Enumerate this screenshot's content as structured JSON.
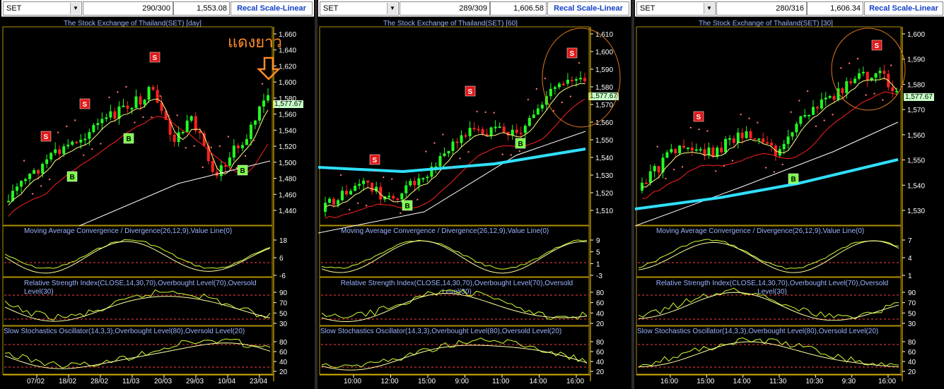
{
  "panels": [
    {
      "symbol": "SET",
      "bars": "290/300",
      "price": "1,553.08",
      "recal": "Recal Scale-Linear",
      "title": "The Stock Exchange of Thailand(SET) [day]",
      "last_price": "1,577.67",
      "annotation": "แดงยาว",
      "price_axis": [
        "1,660",
        "1,640",
        "1,620",
        "1,600",
        "1,580",
        "1,560",
        "1,540",
        "1,520",
        "1,500",
        "1,480",
        "1,460",
        "1,440"
      ],
      "macd_title": "Moving Average Convergence / Divergence(26,12,9),Value Line(0)",
      "macd_axis": [
        "18",
        "6",
        "-6"
      ],
      "rsi_title": "Relative Strength Index(CLOSE,14,30,70),Overbought Level(70),Oversold Level(30)",
      "rsi_axis": [
        "90",
        "70",
        "50",
        "30"
      ],
      "sto_title": "Slow Stochastics Oscillator(14,3,3),Overbought Level(80),Oversold Level(20)",
      "sto_axis": [
        "80",
        "60",
        "40",
        "20"
      ],
      "date_axis": [
        "07/02",
        "18/02",
        "28/02",
        "11/03",
        "20/03",
        "29/03",
        "10/04",
        "23/04"
      ],
      "signals": [
        {
          "t": "S",
          "x": 63,
          "y": 193
        },
        {
          "t": "S",
          "x": 118,
          "y": 147
        },
        {
          "t": "S",
          "x": 217,
          "y": 81
        },
        {
          "t": "B",
          "x": 100,
          "y": 250
        },
        {
          "t": "B",
          "x": 180,
          "y": 196
        },
        {
          "t": "B",
          "x": 341,
          "y": 241
        }
      ]
    },
    {
      "symbol": "SET",
      "bars": "289/309",
      "price": "1,606.58",
      "recal": "Recal Scale-Linear",
      "title": "The Stock Exchange of Thailand(SET) [60]",
      "last_price": "1,577.67",
      "annotation": "",
      "price_axis": [
        "1,610",
        "1,600",
        "1,590",
        "1,580",
        "1,570",
        "1,560",
        "1,550",
        "1,540",
        "1,530",
        "1,520",
        "1,510"
      ],
      "macd_title": "Moving Average Convergence / Divergence(26,12,9),Value Line(0)",
      "macd_axis": [
        "9",
        "5",
        "1",
        "-3"
      ],
      "rsi_title": "Relative Strength Index(CLOSE,14,30,70),Overbought Level(70),Oversold Level(30)",
      "rsi_axis": [
        "80",
        "60",
        "40",
        "20"
      ],
      "sto_title": "Slow Stochastics Oscillator(14,3,3),Overbought Level(80),Oversold Level(20)",
      "sto_axis": [
        "80",
        "60",
        "40",
        "20"
      ],
      "date_axis": [
        "10:00",
        "12:00",
        "15:00",
        "9:00",
        "11:00",
        "14:00",
        "16:00"
      ],
      "signals": [
        {
          "t": "S",
          "x": 80,
          "y": 226
        },
        {
          "t": "S",
          "x": 215,
          "y": 129
        },
        {
          "t": "S",
          "x": 359,
          "y": 75
        },
        {
          "t": "B",
          "x": 126,
          "y": 291
        },
        {
          "t": "B",
          "x": 286,
          "y": 203
        }
      ]
    },
    {
      "symbol": "SET",
      "bars": "280/316",
      "price": "1,606.34",
      "recal": "Recal Scale-Linear",
      "title": "The Stock Exchange of Thailand(SET) [30]",
      "last_price": "1,577.67",
      "annotation": "",
      "price_axis": [
        "1,600",
        "1,590",
        "1,580",
        "1,570",
        "1,560",
        "1,550",
        "1,540",
        "1,530"
      ],
      "macd_title": "Moving Average Convergence / Divergence(26,12,9),Value Line(0)",
      "macd_axis": [
        "7",
        "4",
        "1"
      ],
      "rsi_title": "Relative Strength Index(CLOSE,14,30,70),Overbought Level(70),Oversold Level(30)",
      "rsi_axis": [
        "90",
        "70",
        "50",
        "30"
      ],
      "sto_title": "Slow Stochastics Oscillator(14,3,3),Overbought Level(80),Oversold Level(20)",
      "sto_axis": [
        "80",
        "60",
        "40",
        "20"
      ],
      "date_axis": [
        "16:00",
        "15:00",
        "14:00",
        "11:30",
        "10:30",
        "9:30",
        "16:00"
      ],
      "signals": [
        {
          "t": "S",
          "x": 90,
          "y": 165
        },
        {
          "t": "S",
          "x": 342,
          "y": 64
        },
        {
          "t": "B",
          "x": 224,
          "y": 253
        }
      ]
    }
  ],
  "colors": {
    "background": "#000000",
    "bull_candle": "#22ff22",
    "bear_candle": "#ff2222",
    "ma_fast": "#ffff80",
    "ma_mid": "#ff2020",
    "ma_slow": "#ffffff",
    "ma_long": "#30e0ff",
    "sell_signal": "#e01818",
    "buy_signal": "#7cff4a",
    "grid": "#ffd000",
    "title_text": "#9ab4ff"
  }
}
